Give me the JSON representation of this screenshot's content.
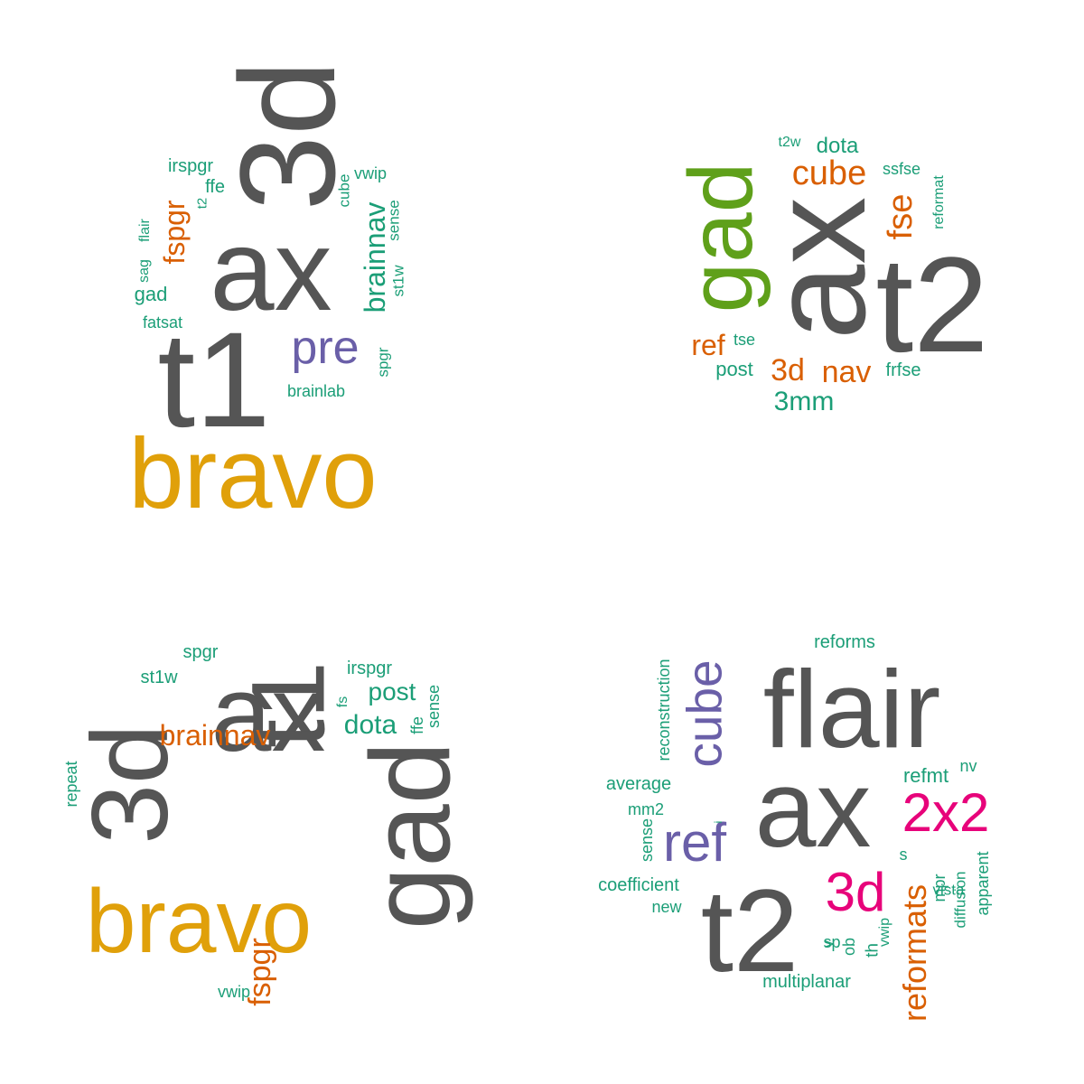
{
  "colors": {
    "gray": "#555555",
    "teal": "#1b9e77",
    "orange": "#d95f02",
    "purple": "#6a5fa8",
    "gold": "#e0a00a",
    "green": "#5fa01a",
    "magenta": "#e7037a"
  },
  "clouds": [
    {
      "words": [
        {
          "text": "ax",
          "color": "gray",
          "rot": 0
        },
        {
          "text": "3d",
          "color": "gray",
          "rot": 90
        },
        {
          "text": "t1",
          "color": "gray",
          "rot": 0
        },
        {
          "text": "bravo",
          "color": "gold",
          "rot": 0
        },
        {
          "text": "pre",
          "color": "purple",
          "rot": 0
        },
        {
          "text": "fspgr",
          "color": "orange",
          "rot": 90
        },
        {
          "text": "brainnav",
          "color": "teal",
          "rot": 90
        },
        {
          "text": "irspgr",
          "color": "teal",
          "rot": 0
        },
        {
          "text": "ffe",
          "color": "teal",
          "rot": 0
        },
        {
          "text": "t2",
          "color": "teal",
          "rot": 90
        },
        {
          "text": "cube",
          "color": "teal",
          "rot": 90
        },
        {
          "text": "vwip",
          "color": "teal",
          "rot": 0
        },
        {
          "text": "sense",
          "color": "teal",
          "rot": 90
        },
        {
          "text": "st1w",
          "color": "teal",
          "rot": 90
        },
        {
          "text": "flair",
          "color": "teal",
          "rot": 90
        },
        {
          "text": "sag",
          "color": "teal",
          "rot": 90
        },
        {
          "text": "gad",
          "color": "teal",
          "rot": 0
        },
        {
          "text": "fatsat",
          "color": "teal",
          "rot": 0
        },
        {
          "text": "spgr",
          "color": "teal",
          "rot": 90
        },
        {
          "text": "brainlab",
          "color": "teal",
          "rot": 0
        }
      ]
    },
    {
      "words": [
        {
          "text": "ax",
          "color": "gray",
          "rot": 90
        },
        {
          "text": "t2",
          "color": "gray",
          "rot": 0
        },
        {
          "text": "gad",
          "color": "green",
          "rot": 90
        },
        {
          "text": "cube",
          "color": "orange",
          "rot": 0
        },
        {
          "text": "fse",
          "color": "orange",
          "rot": 90
        },
        {
          "text": "ref",
          "color": "orange",
          "rot": 0
        },
        {
          "text": "3d",
          "color": "orange",
          "rot": 0
        },
        {
          "text": "nav",
          "color": "orange",
          "rot": 0
        },
        {
          "text": "t2w",
          "color": "teal",
          "rot": 0
        },
        {
          "text": "dota",
          "color": "teal",
          "rot": 0
        },
        {
          "text": "ssfse",
          "color": "teal",
          "rot": 0
        },
        {
          "text": "reformat",
          "color": "teal",
          "rot": 90
        },
        {
          "text": "tse",
          "color": "teal",
          "rot": 0
        },
        {
          "text": "post",
          "color": "teal",
          "rot": 0
        },
        {
          "text": "frfse",
          "color": "teal",
          "rot": 0
        },
        {
          "text": "3mm",
          "color": "teal",
          "rot": 0
        }
      ]
    },
    {
      "words": [
        {
          "text": "ax",
          "color": "gray",
          "rot": 0
        },
        {
          "text": "3d",
          "color": "gray",
          "rot": 90
        },
        {
          "text": "t1",
          "color": "gray",
          "rot": 90
        },
        {
          "text": "gad",
          "color": "gray",
          "rot": 90
        },
        {
          "text": "bravo",
          "color": "gold",
          "rot": 0
        },
        {
          "text": "fspgr",
          "color": "orange",
          "rot": 90
        },
        {
          "text": "brainnav",
          "color": "orange",
          "rot": 0
        },
        {
          "text": "spgr",
          "color": "teal",
          "rot": 0
        },
        {
          "text": "st1w",
          "color": "teal",
          "rot": 0
        },
        {
          "text": "irspgr",
          "color": "teal",
          "rot": 0
        },
        {
          "text": "post",
          "color": "teal",
          "rot": 0
        },
        {
          "text": "dota",
          "color": "teal",
          "rot": 0
        },
        {
          "text": "fs",
          "color": "teal",
          "rot": 90
        },
        {
          "text": "ffe",
          "color": "teal",
          "rot": 90
        },
        {
          "text": "sense",
          "color": "teal",
          "rot": 90
        },
        {
          "text": "repeat",
          "color": "teal",
          "rot": 90
        },
        {
          "text": "vwip",
          "color": "teal",
          "rot": 0
        }
      ]
    },
    {
      "words": [
        {
          "text": "flair",
          "color": "gray",
          "rot": 0
        },
        {
          "text": "ax",
          "color": "gray",
          "rot": 0
        },
        {
          "text": "t2",
          "color": "gray",
          "rot": 0
        },
        {
          "text": "cube",
          "color": "purple",
          "rot": 90
        },
        {
          "text": "ref",
          "color": "purple",
          "rot": 0
        },
        {
          "text": "2x2",
          "color": "magenta",
          "rot": 0
        },
        {
          "text": "3d",
          "color": "magenta",
          "rot": 0
        },
        {
          "text": "reformats",
          "color": "orange",
          "rot": 90
        },
        {
          "text": "refmt",
          "color": "teal",
          "rot": 0
        },
        {
          "text": "nv",
          "color": "teal",
          "rot": 0
        },
        {
          "text": "reforms",
          "color": "teal",
          "rot": 0
        },
        {
          "text": "reconstruction",
          "color": "teal",
          "rot": 90
        },
        {
          "text": "average",
          "color": "teal",
          "rot": 0
        },
        {
          "text": "mm2",
          "color": "teal",
          "rot": 0
        },
        {
          "text": "i",
          "color": "teal",
          "rot": 90
        },
        {
          "text": "sense",
          "color": "teal",
          "rot": 90
        },
        {
          "text": "coefficient",
          "color": "teal",
          "rot": 0
        },
        {
          "text": "new",
          "color": "teal",
          "rot": 0
        },
        {
          "text": "s",
          "color": "teal",
          "rot": 0
        },
        {
          "text": "vista",
          "color": "teal",
          "rot": 0
        },
        {
          "text": "mpr",
          "color": "teal",
          "rot": 90
        },
        {
          "text": "diffusion",
          "color": "teal",
          "rot": 90
        },
        {
          "text": "apparent",
          "color": "teal",
          "rot": 90
        },
        {
          "text": "vwip",
          "color": "teal",
          "rot": 90
        },
        {
          "text": "th",
          "color": "teal",
          "rot": 90
        },
        {
          "text": "sp",
          "color": "teal",
          "rot": 0
        },
        {
          "text": "ob",
          "color": "teal",
          "rot": 90
        },
        {
          "text": "v",
          "color": "teal",
          "rot": 90
        },
        {
          "text": "multiplanar",
          "color": "teal",
          "rot": 0
        }
      ]
    }
  ]
}
